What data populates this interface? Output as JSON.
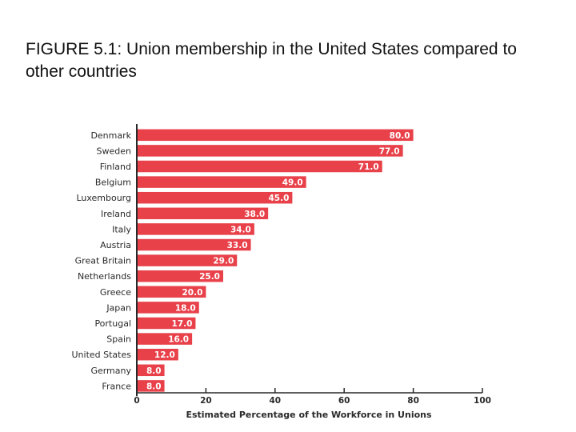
{
  "figure": {
    "title": "FIGURE 5.1: Union membership in the United States compared to other countries"
  },
  "chart_data": {
    "type": "bar",
    "orientation": "horizontal",
    "title": "FIGURE 5.1: Union membership in the United States compared to other countries",
    "xlabel": "Estimated Percentage of the Workforce in Unions",
    "ylabel": "",
    "xlim": [
      0,
      100
    ],
    "xticks": [
      0,
      20,
      40,
      60,
      80,
      100
    ],
    "grid": false,
    "bar_color": "#e8414a",
    "categories": [
      "Denmark",
      "Sweden",
      "Finland",
      "Belgium",
      "Luxembourg",
      "Ireland",
      "Italy",
      "Austria",
      "Great Britain",
      "Netherlands",
      "Greece",
      "Japan",
      "Portugal",
      "Spain",
      "United States",
      "Germany",
      "France"
    ],
    "values": [
      80,
      77,
      71,
      49,
      45,
      38,
      34,
      33,
      29,
      25,
      20,
      18,
      17,
      16,
      12,
      8,
      8
    ],
    "value_labels": [
      "80.0",
      "77.0",
      "71.0",
      "49.0",
      "45.0",
      "38.0",
      "34.0",
      "33.0",
      "29.0",
      "25.0",
      "20.0",
      "18.0",
      "17.0",
      "16.0",
      "12.0",
      "8.0",
      "8.0"
    ]
  }
}
